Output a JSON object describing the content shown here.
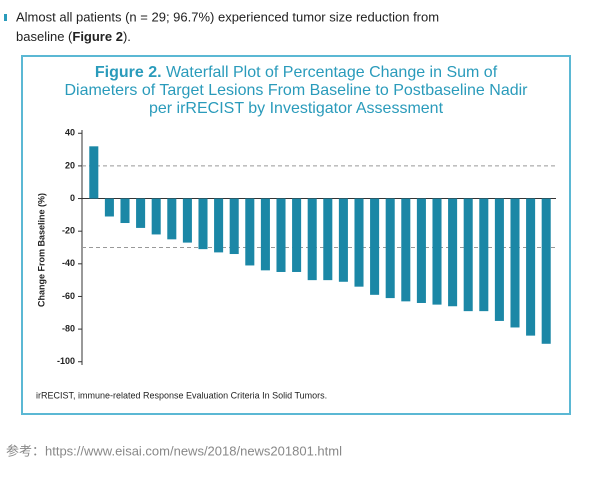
{
  "header": {
    "bullet_line1": "Almost all patients (n = 29; 96.7%) experienced tumor size reduction from",
    "bullet_line2_start": "baseline (",
    "bullet_ref": "Figure 2",
    "bullet_line2_end": ")."
  },
  "chart_data": {
    "type": "bar",
    "figure_label": "Figure 2.",
    "title_lines": [
      "Waterfall Plot of Percentage Change in Sum of",
      "Diameters of Target Lesions From Baseline to Postbaseline Nadir",
      "per irRECIST by Investigator Assessment"
    ],
    "ylabel": "Change From Baseline (%)",
    "values": [
      32,
      -11,
      -15,
      -18,
      -22,
      -25,
      -27,
      -31,
      -33,
      -34,
      -41,
      -44,
      -45,
      -45,
      -50,
      -50,
      -51,
      -54,
      -59,
      -61,
      -63,
      -64,
      -65,
      -66,
      -69,
      -69,
      -75,
      -79,
      -84,
      -89
    ],
    "color": "#1b87a6",
    "ylim": [
      -102,
      42
    ],
    "yticks": [
      40,
      20,
      0,
      -20,
      -40,
      -60,
      -80,
      -100
    ],
    "reference_lines": [
      20,
      -30
    ],
    "footnote": "irRECIST, immune-related Response Evaluation Criteria In Solid Tumors."
  },
  "source": "参考：https://www.eisai.com/news/2018/news201801.html"
}
